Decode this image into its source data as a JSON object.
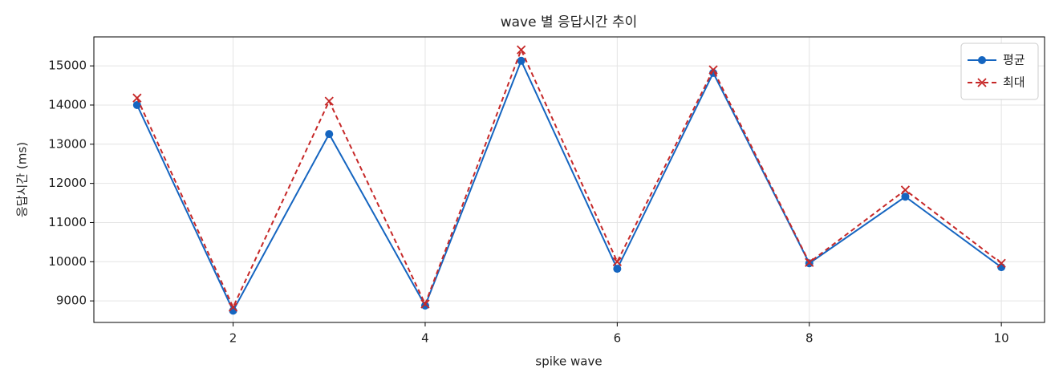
{
  "chart_data": {
    "type": "line",
    "title": "wave 별 응답시간 추이",
    "x_label": "spike wave",
    "y_label": "응답시간 (ms)",
    "x": [
      1,
      2,
      3,
      4,
      5,
      6,
      7,
      8,
      9,
      10
    ],
    "series": [
      {
        "name": "평균",
        "color": "#1565c0",
        "marker": "circle",
        "dash": false,
        "values": [
          14000,
          8750,
          13260,
          8880,
          15130,
          9820,
          14820,
          9960,
          11660,
          9860
        ]
      },
      {
        "name": "최대",
        "color": "#c62828",
        "marker": "x",
        "dash": true,
        "values": [
          14180,
          8840,
          14100,
          8920,
          15410,
          10000,
          14900,
          9980,
          11830,
          9960
        ]
      }
    ],
    "xlim": [
      0.55,
      10.45
    ],
    "ylim": [
      8450,
      15740
    ],
    "xticks": [
      2,
      4,
      6,
      8,
      10
    ],
    "yticks": [
      9000,
      10000,
      11000,
      12000,
      13000,
      14000,
      15000
    ],
    "grid": true,
    "legend": "upper right"
  }
}
